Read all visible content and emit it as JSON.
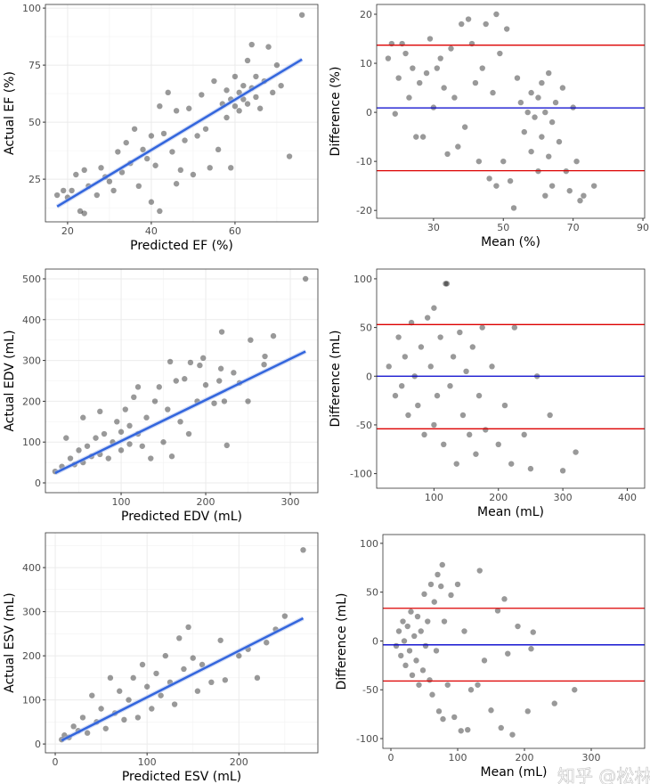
{
  "chart_data": [
    {
      "type": "scatter",
      "xlabel": "Predicted EF (%)",
      "ylabel": "Actual EF (%)",
      "xlim": [
        14.7,
        79.8
      ],
      "ylim": [
        6.3,
        101.6
      ],
      "xticks": [
        20,
        40,
        60
      ],
      "yticks": [
        25,
        50,
        75,
        100
      ],
      "grid": true,
      "point_color": "#000000",
      "line_color": "#3366dd",
      "fit_line": [
        [
          17.5,
          13
        ],
        [
          76,
          77.5
        ]
      ],
      "points": [
        [
          17.5,
          18
        ],
        [
          19,
          20
        ],
        [
          20,
          17
        ],
        [
          21,
          20
        ],
        [
          22,
          27
        ],
        [
          23,
          11
        ],
        [
          24,
          10
        ],
        [
          24,
          29
        ],
        [
          25,
          22
        ],
        [
          27,
          18
        ],
        [
          28,
          30
        ],
        [
          29,
          26
        ],
        [
          30,
          24
        ],
        [
          31,
          20
        ],
        [
          32,
          37
        ],
        [
          33,
          28
        ],
        [
          34,
          41
        ],
        [
          35,
          32
        ],
        [
          36,
          47
        ],
        [
          37,
          22
        ],
        [
          38,
          38
        ],
        [
          39,
          34
        ],
        [
          40,
          15
        ],
        [
          40,
          44
        ],
        [
          41,
          31
        ],
        [
          42,
          57
        ],
        [
          42,
          11
        ],
        [
          43,
          45
        ],
        [
          44,
          63
        ],
        [
          45,
          37
        ],
        [
          46,
          23
        ],
        [
          46,
          55
        ],
        [
          47,
          29
        ],
        [
          48,
          42
        ],
        [
          49,
          56
        ],
        [
          50,
          27
        ],
        [
          51,
          44
        ],
        [
          52,
          62
        ],
        [
          53,
          47
        ],
        [
          54,
          30
        ],
        [
          55,
          68
        ],
        [
          56,
          38
        ],
        [
          57,
          58
        ],
        [
          58,
          52
        ],
        [
          58,
          64
        ],
        [
          59,
          30
        ],
        [
          59,
          60
        ],
        [
          60,
          57
        ],
        [
          60,
          70
        ],
        [
          61,
          63
        ],
        [
          61,
          55
        ],
        [
          62,
          66
        ],
        [
          62,
          60
        ],
        [
          63,
          77
        ],
        [
          63,
          58
        ],
        [
          64,
          84
        ],
        [
          64,
          65
        ],
        [
          65,
          61
        ],
        [
          65,
          70
        ],
        [
          66,
          56
        ],
        [
          67,
          68
        ],
        [
          68,
          83
        ],
        [
          69,
          63
        ],
        [
          70,
          75
        ],
        [
          71,
          66
        ],
        [
          73,
          35
        ],
        [
          76,
          97
        ]
      ]
    },
    {
      "type": "scatter",
      "xlabel": "Mean (%)",
      "ylabel": "Difference (%)",
      "xlim": [
        13.7,
        90.5
      ],
      "ylim": [
        -21.6,
        22
      ],
      "xticks": [
        30,
        50,
        70,
        90
      ],
      "yticks": [
        -20,
        -10,
        0,
        10,
        20
      ],
      "grid": false,
      "point_color": "#000000",
      "mean_line": {
        "value": 0.9,
        "color": "#0000cc"
      },
      "limit_lines": {
        "values": [
          13.7,
          -11.9
        ],
        "color": "#dd0000"
      },
      "points": [
        [
          17,
          11
        ],
        [
          18,
          14
        ],
        [
          19,
          -0.3
        ],
        [
          20,
          7
        ],
        [
          21,
          14
        ],
        [
          22,
          12
        ],
        [
          23,
          3
        ],
        [
          24,
          9
        ],
        [
          25,
          -5
        ],
        [
          26,
          6
        ],
        [
          27,
          -5
        ],
        [
          28,
          8
        ],
        [
          29,
          15
        ],
        [
          30,
          1
        ],
        [
          31,
          9
        ],
        [
          32,
          11
        ],
        [
          33,
          5
        ],
        [
          34,
          -8.5
        ],
        [
          35,
          13
        ],
        [
          36,
          3
        ],
        [
          37,
          -7
        ],
        [
          38,
          18
        ],
        [
          39,
          -3
        ],
        [
          40,
          19
        ],
        [
          41,
          14
        ],
        [
          42,
          6
        ],
        [
          43,
          -10
        ],
        [
          44,
          9
        ],
        [
          45,
          18
        ],
        [
          46,
          -13.5
        ],
        [
          47,
          4
        ],
        [
          48,
          20
        ],
        [
          48,
          -15
        ],
        [
          49,
          12
        ],
        [
          50,
          -10
        ],
        [
          51,
          17
        ],
        [
          52,
          -14
        ],
        [
          53,
          -19.5
        ],
        [
          54,
          7
        ],
        [
          55,
          2
        ],
        [
          56,
          -4
        ],
        [
          57,
          0
        ],
        [
          58,
          -8
        ],
        [
          58,
          4
        ],
        [
          59,
          -1
        ],
        [
          60,
          3
        ],
        [
          60,
          -12
        ],
        [
          61,
          -5
        ],
        [
          61,
          6
        ],
        [
          62,
          -17
        ],
        [
          62,
          0
        ],
        [
          63,
          -9
        ],
        [
          63,
          8
        ],
        [
          64,
          -15
        ],
        [
          64,
          -2
        ],
        [
          65,
          2
        ],
        [
          66,
          -6
        ],
        [
          67,
          5
        ],
        [
          68,
          -12
        ],
        [
          69,
          -16
        ],
        [
          70,
          1
        ],
        [
          71,
          -10
        ],
        [
          72,
          -18
        ],
        [
          73,
          -17
        ],
        [
          76,
          -15
        ]
      ]
    },
    {
      "type": "scatter",
      "xlabel": "Predicted EDV (mL)",
      "ylabel": "Actual EDV (mL)",
      "xlim": [
        10.5,
        332.6
      ],
      "ylim": [
        -24,
        524
      ],
      "xticks": [
        100,
        200,
        300
      ],
      "yticks": [
        0,
        100,
        200,
        300,
        400,
        500
      ],
      "grid": true,
      "point_color": "#000000",
      "line_color": "#3366dd",
      "fit_line": [
        [
          22,
          24
        ],
        [
          318,
          322
        ]
      ],
      "points": [
        [
          22,
          28
        ],
        [
          30,
          40
        ],
        [
          35,
          110
        ],
        [
          40,
          60
        ],
        [
          45,
          45
        ],
        [
          50,
          80
        ],
        [
          55,
          160
        ],
        [
          55,
          50
        ],
        [
          60,
          90
        ],
        [
          65,
          65
        ],
        [
          70,
          110
        ],
        [
          75,
          70
        ],
        [
          75,
          175
        ],
        [
          80,
          120
        ],
        [
          85,
          60
        ],
        [
          90,
          100
        ],
        [
          95,
          150
        ],
        [
          100,
          80
        ],
        [
          100,
          125
        ],
        [
          105,
          180
        ],
        [
          110,
          95
        ],
        [
          110,
          140
        ],
        [
          115,
          210
        ],
        [
          120,
          120
        ],
        [
          120,
          235
        ],
        [
          125,
          90
        ],
        [
          130,
          160
        ],
        [
          135,
          60
        ],
        [
          140,
          200
        ],
        [
          145,
          235
        ],
        [
          150,
          100
        ],
        [
          155,
          180
        ],
        [
          158,
          297
        ],
        [
          160,
          65
        ],
        [
          165,
          250
        ],
        [
          170,
          150
        ],
        [
          175,
          255
        ],
        [
          180,
          120
        ],
        [
          182,
          295
        ],
        [
          190,
          200
        ],
        [
          193,
          288
        ],
        [
          197,
          306
        ],
        [
          200,
          240
        ],
        [
          210,
          195
        ],
        [
          216,
          250
        ],
        [
          218,
          280
        ],
        [
          219,
          370
        ],
        [
          222,
          200
        ],
        [
          225,
          92
        ],
        [
          233,
          270
        ],
        [
          240,
          245
        ],
        [
          250,
          200
        ],
        [
          253,
          350
        ],
        [
          269,
          290
        ],
        [
          270,
          310
        ],
        [
          280,
          360
        ],
        [
          318,
          500
        ]
      ]
    },
    {
      "type": "scatter",
      "xlabel": "Mean (mL)",
      "ylabel": "Difference (mL)",
      "xlim": [
        11,
        427
      ],
      "ylim": [
        -115,
        110
      ],
      "xticks": [
        100,
        200,
        300,
        400
      ],
      "yticks": [
        -100,
        -50,
        0,
        50,
        100
      ],
      "grid": false,
      "point_color": "#000000",
      "mean_line": {
        "value": 0,
        "color": "#0000cc"
      },
      "limit_lines": {
        "values": [
          53,
          -54
        ],
        "color": "#dd0000"
      },
      "points": [
        [
          30,
          10
        ],
        [
          40,
          -20
        ],
        [
          45,
          40
        ],
        [
          50,
          -10
        ],
        [
          55,
          20
        ],
        [
          60,
          -40
        ],
        [
          65,
          55
        ],
        [
          70,
          0
        ],
        [
          75,
          -30
        ],
        [
          80,
          30
        ],
        [
          85,
          -60
        ],
        [
          90,
          60
        ],
        [
          95,
          10
        ],
        [
          100,
          -50
        ],
        [
          100,
          70
        ],
        [
          105,
          -20
        ],
        [
          110,
          40
        ],
        [
          115,
          -70
        ],
        [
          118,
          95
        ],
        [
          120,
          95
        ],
        [
          125,
          -10
        ],
        [
          130,
          20
        ],
        [
          135,
          -90
        ],
        [
          140,
          45
        ],
        [
          145,
          -40
        ],
        [
          150,
          5
        ],
        [
          155,
          -60
        ],
        [
          160,
          30
        ],
        [
          165,
          -80
        ],
        [
          170,
          -20
        ],
        [
          175,
          50
        ],
        [
          180,
          -55
        ],
        [
          190,
          10
        ],
        [
          200,
          -70
        ],
        [
          210,
          -30
        ],
        [
          220,
          -90
        ],
        [
          225,
          50
        ],
        [
          240,
          -60
        ],
        [
          250,
          -95
        ],
        [
          260,
          0
        ],
        [
          280,
          -40
        ],
        [
          300,
          -97
        ],
        [
          320,
          -78
        ]
      ]
    },
    {
      "type": "scatter",
      "xlabel": "Predicted ESV (mL)",
      "ylabel": "Actual ESV (mL)",
      "xlim": [
        -10.7,
        286
      ],
      "ylim": [
        -20,
        479
      ],
      "xticks": [
        0,
        100,
        200
      ],
      "yticks": [
        0,
        100,
        200,
        300,
        400
      ],
      "grid": true,
      "point_color": "#000000",
      "line_color": "#3366dd",
      "fit_line": [
        [
          7,
          8
        ],
        [
          270,
          285
        ]
      ],
      "points": [
        [
          7,
          10
        ],
        [
          10,
          20
        ],
        [
          15,
          15
        ],
        [
          20,
          40
        ],
        [
          25,
          30
        ],
        [
          30,
          60
        ],
        [
          35,
          25
        ],
        [
          40,
          110
        ],
        [
          45,
          50
        ],
        [
          50,
          80
        ],
        [
          55,
          35
        ],
        [
          60,
          150
        ],
        [
          65,
          70
        ],
        [
          70,
          120
        ],
        [
          75,
          55
        ],
        [
          80,
          100
        ],
        [
          85,
          150
        ],
        [
          90,
          60
        ],
        [
          95,
          180
        ],
        [
          100,
          130
        ],
        [
          105,
          80
        ],
        [
          110,
          160
        ],
        [
          115,
          110
        ],
        [
          120,
          200
        ],
        [
          125,
          140
        ],
        [
          130,
          90
        ],
        [
          135,
          240
        ],
        [
          140,
          170
        ],
        [
          145,
          265
        ],
        [
          150,
          195
        ],
        [
          155,
          120
        ],
        [
          160,
          180
        ],
        [
          170,
          140
        ],
        [
          180,
          235
        ],
        [
          185,
          145
        ],
        [
          200,
          200
        ],
        [
          210,
          215
        ],
        [
          220,
          150
        ],
        [
          230,
          230
        ],
        [
          240,
          260
        ],
        [
          250,
          290
        ],
        [
          270,
          440
        ]
      ]
    },
    {
      "type": "scatter",
      "xlabel": "Mean (mL)",
      "ylabel": "Difference (mL)",
      "xlim": [
        -12,
        380
      ],
      "ylim": [
        -110,
        109
      ],
      "xticks": [
        0,
        100,
        200,
        300
      ],
      "yticks": [
        -100,
        -50,
        0,
        50,
        100
      ],
      "grid": false,
      "point_color": "#000000",
      "mean_line": {
        "value": -4,
        "color": "#0000cc"
      },
      "limit_lines": {
        "values": [
          33.5,
          -41
        ],
        "color": "#dd0000"
      },
      "points": [
        [
          8,
          -5
        ],
        [
          12,
          10
        ],
        [
          15,
          -15
        ],
        [
          18,
          20
        ],
        [
          20,
          0
        ],
        [
          22,
          -25
        ],
        [
          25,
          15
        ],
        [
          28,
          -10
        ],
        [
          30,
          30
        ],
        [
          32,
          -35
        ],
        [
          35,
          5
        ],
        [
          38,
          -20
        ],
        [
          40,
          25
        ],
        [
          42,
          -45
        ],
        [
          45,
          10
        ],
        [
          48,
          -30
        ],
        [
          50,
          48
        ],
        [
          52,
          -5
        ],
        [
          55,
          20
        ],
        [
          58,
          -40
        ],
        [
          60,
          58
        ],
        [
          62,
          -55
        ],
        [
          65,
          40
        ],
        [
          68,
          -10
        ],
        [
          70,
          68
        ],
        [
          72,
          -72
        ],
        [
          75,
          56
        ],
        [
          77,
          78
        ],
        [
          78,
          -80
        ],
        [
          80,
          20
        ],
        [
          85,
          -45
        ],
        [
          90,
          47
        ],
        [
          95,
          -78
        ],
        [
          100,
          58
        ],
        [
          105,
          -92
        ],
        [
          110,
          10
        ],
        [
          115,
          -91
        ],
        [
          120,
          -50
        ],
        [
          130,
          -45
        ],
        [
          133,
          72
        ],
        [
          140,
          -20
        ],
        [
          150,
          -71
        ],
        [
          160,
          31
        ],
        [
          165,
          -89
        ],
        [
          170,
          43
        ],
        [
          175,
          -13
        ],
        [
          182,
          -96
        ],
        [
          190,
          15
        ],
        [
          205,
          -72
        ],
        [
          210,
          -8
        ],
        [
          213,
          9
        ],
        [
          245,
          -64
        ],
        [
          275,
          -50
        ]
      ]
    }
  ],
  "watermark": "知乎 @松林"
}
